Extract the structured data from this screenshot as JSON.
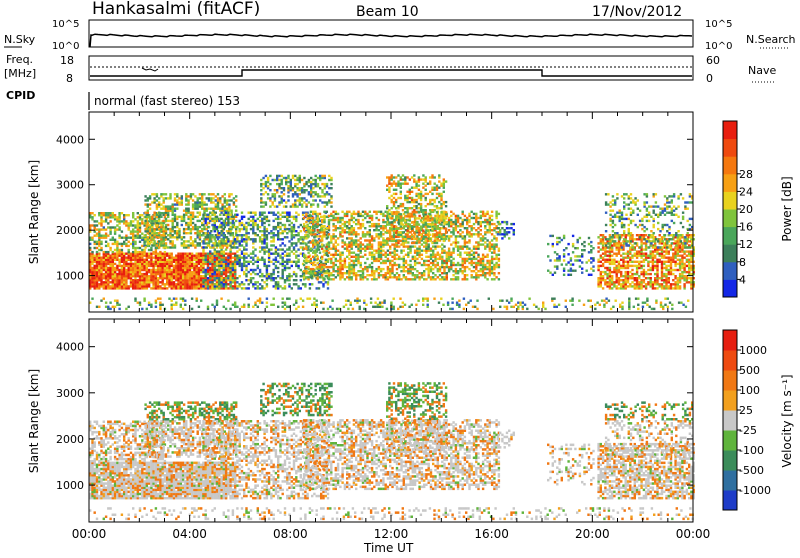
{
  "header": {
    "station": "Hankasalmi (fitACF)",
    "beam": "Beam 10",
    "date": "17/Nov/2012"
  },
  "noise_panel": {
    "left_label": "N.Sky",
    "left_ticks": [
      "10^5",
      "10^0"
    ],
    "right_label": "N.Search",
    "right_ticks": [
      "10^5",
      "10^0"
    ]
  },
  "freq_panel": {
    "left_label_line1": "Freq.",
    "left_label_line2": "[MHz]",
    "left_ticks": [
      "18",
      "8"
    ],
    "right_label": "Nave",
    "right_ticks": [
      "60",
      "0"
    ]
  },
  "cpid": {
    "label": "CPID",
    "mode_text": "normal (fast stereo) 153"
  },
  "x_axis": {
    "label": "Time UT",
    "ticks": [
      "00:00",
      "04:00",
      "08:00",
      "12:00",
      "16:00",
      "20:00",
      "00:00"
    ]
  },
  "chart_data": [
    {
      "type": "heatmap",
      "panel": "power",
      "xlabel": "Time UT",
      "ylabel": "Slant Range [km]",
      "y_ticks": [
        1000,
        2000,
        3000,
        4000
      ],
      "ylim": [
        200,
        4600
      ],
      "xlim_hours": [
        0,
        24
      ],
      "colorbar": {
        "label": "Power [dB]",
        "ticks": [
          4,
          8,
          12,
          16,
          20,
          24,
          28
        ],
        "colors": [
          "#1428e6",
          "#2f5fbf",
          "#3c7f5a",
          "#4aa65a",
          "#7fc43c",
          "#e8d21e",
          "#f7a014",
          "#f5780f",
          "#ef4a0f",
          "#e81e0f"
        ]
      }
    },
    {
      "type": "heatmap",
      "panel": "velocity",
      "xlabel": "Time UT",
      "ylabel": "Slant Range [km]",
      "y_ticks": [
        1000,
        2000,
        3000,
        4000
      ],
      "ylim": [
        200,
        4600
      ],
      "xlim_hours": [
        0,
        24
      ],
      "colorbar": {
        "label": "Velocity [m s⁻¹]",
        "ticks": [
          1000,
          500,
          100,
          25,
          -25,
          -100,
          -500,
          -1000
        ],
        "colors": [
          "#1e3cc8",
          "#2f6fa0",
          "#3b8c5a",
          "#5fb43c",
          "#c8c8c8",
          "#f2a01e",
          "#f07814",
          "#ee4a10",
          "#e61e10"
        ]
      }
    }
  ]
}
